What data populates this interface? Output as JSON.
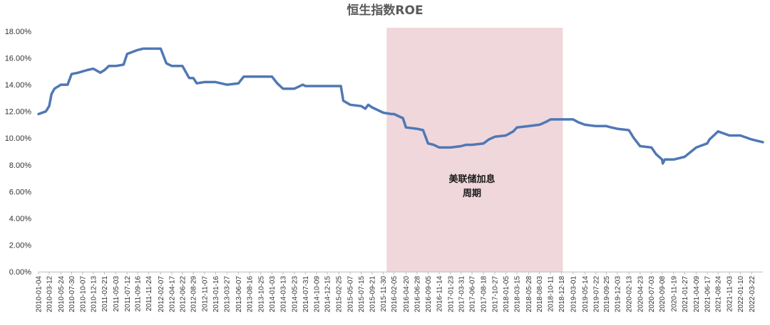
{
  "chart_data": {
    "type": "line",
    "title": "恒生指数ROE",
    "xlabel": "",
    "ylabel": "",
    "ylim": [
      0,
      18
    ],
    "y_ticks": [
      "0.00%",
      "2.00%",
      "4.00%",
      "6.00%",
      "8.00%",
      "10.00%",
      "12.00%",
      "14.00%",
      "16.00%",
      "18.00%"
    ],
    "x_ticks": [
      "2010-01-04",
      "2010-03-12",
      "2010-05-24",
      "2010-07-30",
      "2010-10-07",
      "2010-12-13",
      "2011-02-21",
      "2011-05-03",
      "2011-07-12",
      "2011-09-16",
      "2011-11-24",
      "2012-02-07",
      "2012-04-17",
      "2012-06-22",
      "2012-08-29",
      "2012-11-07",
      "2013-01-16",
      "2013-03-27",
      "2013-06-07",
      "2013-08-16",
      "2013-10-25",
      "2014-01-03",
      "2014-03-13",
      "2014-05-23",
      "2014-07-31",
      "2014-10-09",
      "2014-12-15",
      "2015-02-25",
      "2015-05-07",
      "2015-07-15",
      "2015-09-21",
      "2015-11-30",
      "2016-02-05",
      "2016-04-20",
      "2016-06-28",
      "2016-09-05",
      "2016-11-14",
      "2017-01-23",
      "2017-03-31",
      "2017-06-07",
      "2017-08-18",
      "2017-10-27",
      "2018-01-05",
      "2018-03-15",
      "2018-05-28",
      "2018-08-03",
      "2018-10-11",
      "2018-12-18",
      "2019-03-01",
      "2019-05-14",
      "2019-07-22",
      "2019-09-25",
      "2019-12-03",
      "2020-02-13",
      "2020-04-23",
      "2020-07-03",
      "2020-09-08",
      "2020-11-19",
      "2021-01-27",
      "2021-04-09",
      "2021-06-17",
      "2021-08-24",
      "2021-11-03",
      "2022-01-10",
      "2022-03-22"
    ],
    "x_last": "2022-05-31",
    "series": [
      {
        "color": "#4f78b5",
        "x": [
          "2010-01-04",
          "2010-02-19",
          "2010-03-12",
          "2010-03-26",
          "2010-04-14",
          "2010-05-24",
          "2010-07-05",
          "2010-07-30",
          "2010-09-10",
          "2010-11-05",
          "2010-12-13",
          "2011-01-26",
          "2011-02-21",
          "2011-03-20",
          "2011-05-03",
          "2011-06-20",
          "2011-07-12",
          "2011-09-16",
          "2011-10-20",
          "2011-11-24",
          "2012-01-01",
          "2012-02-07",
          "2012-03-01",
          "2012-03-14",
          "2012-04-17",
          "2012-06-22",
          "2012-08-03",
          "2012-08-29",
          "2012-09-20",
          "2012-11-07",
          "2013-01-16",
          "2013-03-27",
          "2013-06-07",
          "2013-07-10",
          "2013-08-16",
          "2013-10-25",
          "2014-01-03",
          "2014-02-05",
          "2014-03-13",
          "2014-05-23",
          "2014-07-15",
          "2014-07-31",
          "2014-10-09",
          "2014-12-15",
          "2015-02-25",
          "2015-03-10",
          "2015-03-25",
          "2015-05-07",
          "2015-07-15",
          "2015-08-10",
          "2015-08-28",
          "2015-09-21",
          "2015-11-30",
          "2016-01-20",
          "2016-02-05",
          "2016-04-01",
          "2016-04-20",
          "2016-06-28",
          "2016-08-05",
          "2016-09-05",
          "2016-10-10",
          "2016-11-14",
          "2017-01-23",
          "2017-03-31",
          "2017-05-01",
          "2017-06-07",
          "2017-08-18",
          "2017-09-20",
          "2017-10-27",
          "2018-01-05",
          "2018-02-20",
          "2018-03-15",
          "2018-05-28",
          "2018-08-03",
          "2018-09-10",
          "2018-10-11",
          "2018-12-18",
          "2019-03-01",
          "2019-04-01",
          "2019-05-14",
          "2019-07-22",
          "2019-09-25",
          "2019-10-25",
          "2019-12-03",
          "2020-02-13",
          "2020-03-15",
          "2020-04-23",
          "2020-07-03",
          "2020-08-01",
          "2020-09-08",
          "2020-09-12",
          "2020-09-25",
          "2020-11-19",
          "2021-01-27",
          "2021-04-09",
          "2021-06-17",
          "2021-07-01",
          "2021-08-24",
          "2021-11-03",
          "2022-01-10",
          "2022-03-22",
          "2022-05-31"
        ],
        "values": [
          11.8,
          12.0,
          12.4,
          13.3,
          13.7,
          14.0,
          14.0,
          14.8,
          14.9,
          15.1,
          15.2,
          14.9,
          15.1,
          15.4,
          15.4,
          15.5,
          16.3,
          16.6,
          16.7,
          16.7,
          16.7,
          16.7,
          16.0,
          15.6,
          15.4,
          15.4,
          14.5,
          14.5,
          14.1,
          14.2,
          14.2,
          14.0,
          14.1,
          14.6,
          14.6,
          14.6,
          14.6,
          14.1,
          13.7,
          13.7,
          14.0,
          13.9,
          13.9,
          13.9,
          13.9,
          13.9,
          12.8,
          12.5,
          12.4,
          12.2,
          12.5,
          12.3,
          11.9,
          11.8,
          11.8,
          11.5,
          10.8,
          10.7,
          10.6,
          9.6,
          9.5,
          9.3,
          9.3,
          9.4,
          9.5,
          9.5,
          9.6,
          9.9,
          10.1,
          10.2,
          10.5,
          10.8,
          10.9,
          11.0,
          11.2,
          11.4,
          11.4,
          11.4,
          11.2,
          11.0,
          10.9,
          10.9,
          10.8,
          10.7,
          10.6,
          10.0,
          9.4,
          9.3,
          8.8,
          8.4,
          8.1,
          8.4,
          8.4,
          8.6,
          9.3,
          9.6,
          9.9,
          10.5,
          10.2,
          10.2,
          9.9,
          9.7
        ]
      }
    ],
    "shaded_period": {
      "x_start": "2015-12-21",
      "x_end": "2018-12-27",
      "color": "#f0d7db"
    },
    "annotations": [
      {
        "lines": [
          "美联储加息",
          "周期"
        ],
        "x": "2017-06-07",
        "y": 6.7
      }
    ]
  }
}
